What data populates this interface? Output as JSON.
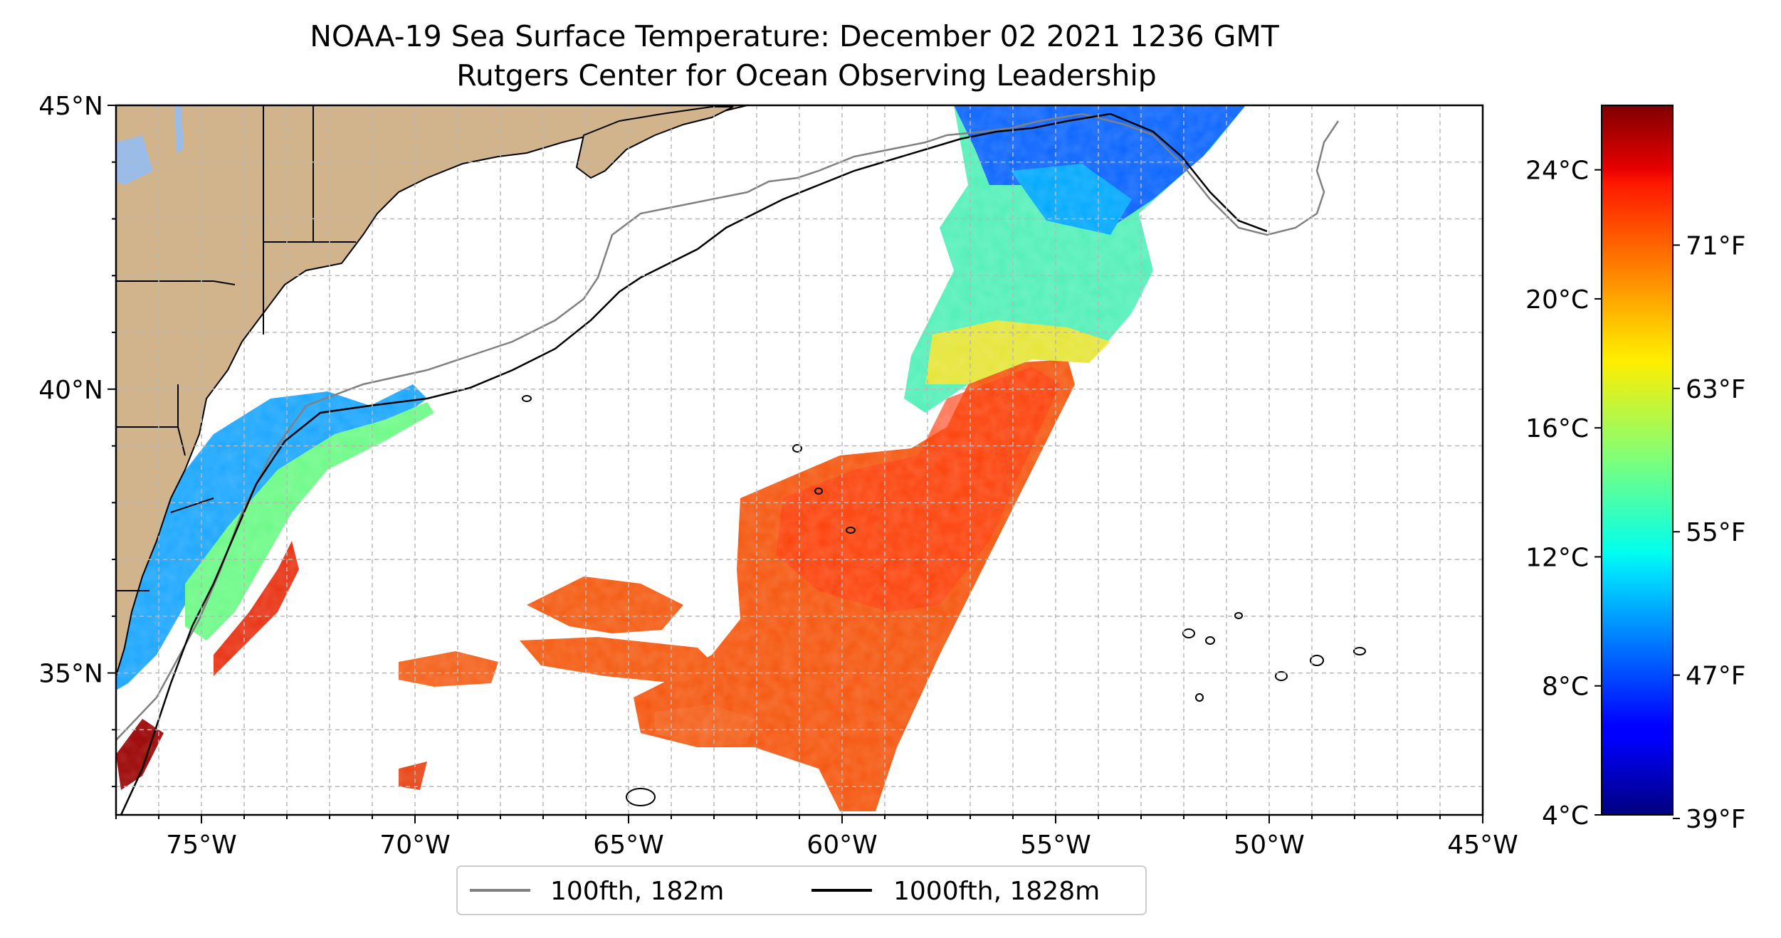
{
  "title": {
    "line1": "NOAA-19 Sea Surface Temperature: December 02 2021 1236 GMT",
    "line2": "Rutgers Center for Ocean Observing Leadership"
  },
  "map": {
    "projection": "plate-carree",
    "lon_range": [
      -77,
      -45
    ],
    "lat_range": [
      32.5,
      45
    ],
    "gridlines": "dashed, every 1 degree",
    "x_ticks": [
      {
        "lon": -75,
        "label": "75°W"
      },
      {
        "lon": -70,
        "label": "70°W"
      },
      {
        "lon": -65,
        "label": "65°W"
      },
      {
        "lon": -60,
        "label": "60°W"
      },
      {
        "lon": -55,
        "label": "55°W"
      },
      {
        "lon": -50,
        "label": "50°W"
      },
      {
        "lon": -45,
        "label": "45°W"
      }
    ],
    "y_ticks": [
      {
        "lat": 45,
        "label": "45°N"
      },
      {
        "lat": 40,
        "label": "40°N"
      },
      {
        "lat": 35,
        "label": "35°N"
      }
    ],
    "colors": {
      "land": "#d2b48c",
      "lakes": "#9cbce8",
      "ocean": "#ffffff",
      "isobath_100fth": "#808080",
      "isobath_1000fth": "#000000"
    }
  },
  "legend": {
    "placement": "bottom-center",
    "items": [
      {
        "label": "100fth, 182m",
        "color": "#808080"
      },
      {
        "label": "1000fth, 1828m",
        "color": "#000000"
      }
    ]
  },
  "colorbar": {
    "colormap": "jet",
    "range_c": [
      4,
      26
    ],
    "celsius_ticks": [
      {
        "value": 24,
        "label": "24°C"
      },
      {
        "value": 20,
        "label": "20°C"
      },
      {
        "value": 16,
        "label": "16°C"
      },
      {
        "value": 12,
        "label": "12°C"
      },
      {
        "value": 8,
        "label": "8°C"
      },
      {
        "value": 4,
        "label": "4°C"
      }
    ],
    "fahrenheit_ticks": [
      {
        "value": 71,
        "label": "71°F"
      },
      {
        "value": 63,
        "label": "63°F"
      },
      {
        "value": 55,
        "label": "55°F"
      },
      {
        "value": 47,
        "label": "47°F"
      },
      {
        "value": 39,
        "label": "39°F"
      }
    ]
  }
}
